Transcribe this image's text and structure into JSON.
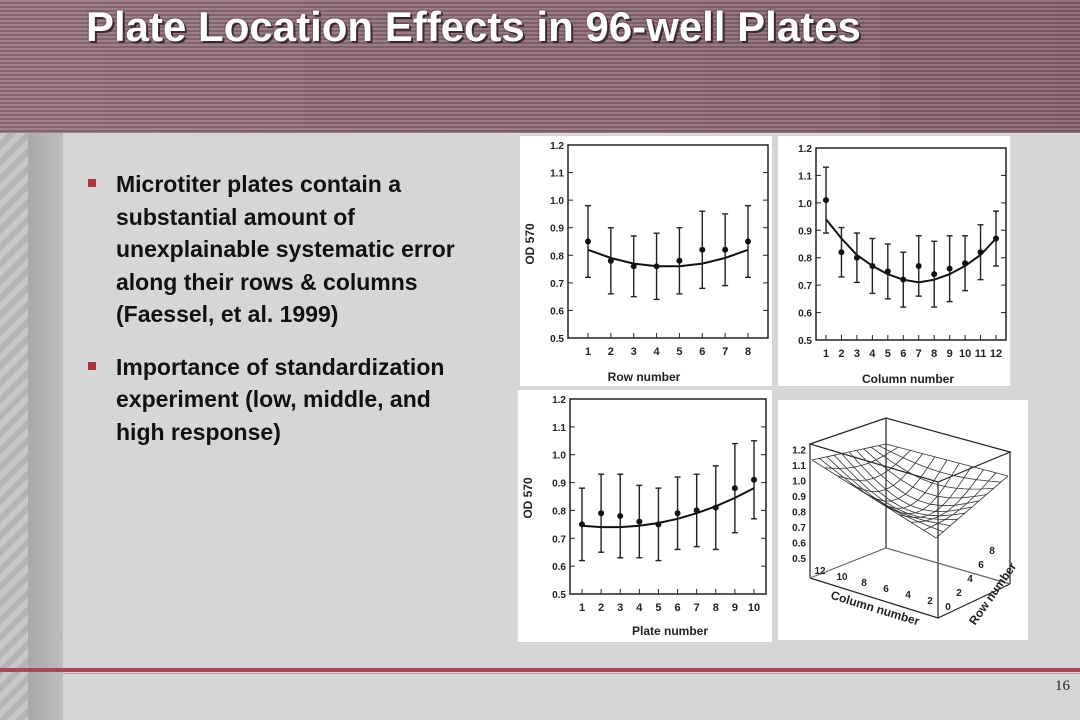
{
  "slide": {
    "title": "Plate Location Effects in 96-well Plates",
    "page_number": "16",
    "bullets": [
      "Microtiter plates contain a substantial amount of unexplainable systematic error along their rows & columns (Faessel, et al. 1999)",
      "Importance of standardization experiment (low, middle, and high response)"
    ]
  },
  "colors": {
    "accent": "#a8343f",
    "header": "#8a6a76",
    "background": "#d6d6d6"
  },
  "chart_data": [
    {
      "type": "scatter",
      "xlabel": "Row number",
      "ylabel": "OD 570",
      "ylim": [
        0.5,
        1.2
      ],
      "yticks": [
        "0.5",
        "0.6",
        "0.7",
        "0.8",
        "0.9",
        "1.0",
        "1.1",
        "1.2"
      ],
      "x": [
        1,
        2,
        3,
        4,
        5,
        6,
        7,
        8
      ],
      "y": [
        0.85,
        0.78,
        0.76,
        0.76,
        0.78,
        0.82,
        0.82,
        0.85
      ],
      "err": [
        0.13,
        0.12,
        0.11,
        0.12,
        0.12,
        0.14,
        0.13,
        0.13
      ],
      "fit": [
        0.82,
        0.79,
        0.77,
        0.76,
        0.76,
        0.77,
        0.79,
        0.82
      ]
    },
    {
      "type": "scatter",
      "xlabel": "Column number",
      "ylabel": "",
      "ylim": [
        0.5,
        1.2
      ],
      "yticks": [
        "0.5",
        "0.6",
        "0.7",
        "0.8",
        "0.9",
        "1.0",
        "1.1",
        "1.2"
      ],
      "x": [
        1,
        2,
        3,
        4,
        5,
        6,
        7,
        8,
        9,
        10,
        11,
        12
      ],
      "y": [
        1.01,
        0.82,
        0.8,
        0.77,
        0.75,
        0.72,
        0.77,
        0.74,
        0.76,
        0.78,
        0.82,
        0.87
      ],
      "err": [
        0.12,
        0.09,
        0.09,
        0.1,
        0.1,
        0.1,
        0.11,
        0.12,
        0.12,
        0.1,
        0.1,
        0.1
      ],
      "fit": [
        0.94,
        0.87,
        0.81,
        0.77,
        0.74,
        0.72,
        0.71,
        0.72,
        0.74,
        0.77,
        0.81,
        0.87
      ]
    },
    {
      "type": "scatter",
      "xlabel": "Plate number",
      "ylabel": "OD 570",
      "ylim": [
        0.5,
        1.2
      ],
      "yticks": [
        "0.5",
        "0.6",
        "0.7",
        "0.8",
        "0.9",
        "1.0",
        "1.1",
        "1.2"
      ],
      "x": [
        1,
        2,
        3,
        4,
        5,
        6,
        7,
        8,
        9,
        10
      ],
      "y": [
        0.75,
        0.79,
        0.78,
        0.76,
        0.75,
        0.79,
        0.8,
        0.81,
        0.88,
        0.91
      ],
      "err": [
        0.13,
        0.14,
        0.15,
        0.13,
        0.13,
        0.13,
        0.13,
        0.15,
        0.16,
        0.14
      ],
      "fit": [
        0.745,
        0.74,
        0.74,
        0.745,
        0.755,
        0.77,
        0.79,
        0.815,
        0.845,
        0.88
      ]
    },
    {
      "type": "surface",
      "xlabel": "Column number",
      "ylabel": "Row number",
      "zticks": [
        "0.5",
        "0.6",
        "0.7",
        "0.8",
        "0.9",
        "1.0",
        "1.1",
        "1.2"
      ],
      "xticks": [
        "12",
        "10",
        "8",
        "6",
        "4",
        "2"
      ],
      "yticks": [
        "0",
        "2",
        "4",
        "6",
        "8"
      ]
    }
  ]
}
